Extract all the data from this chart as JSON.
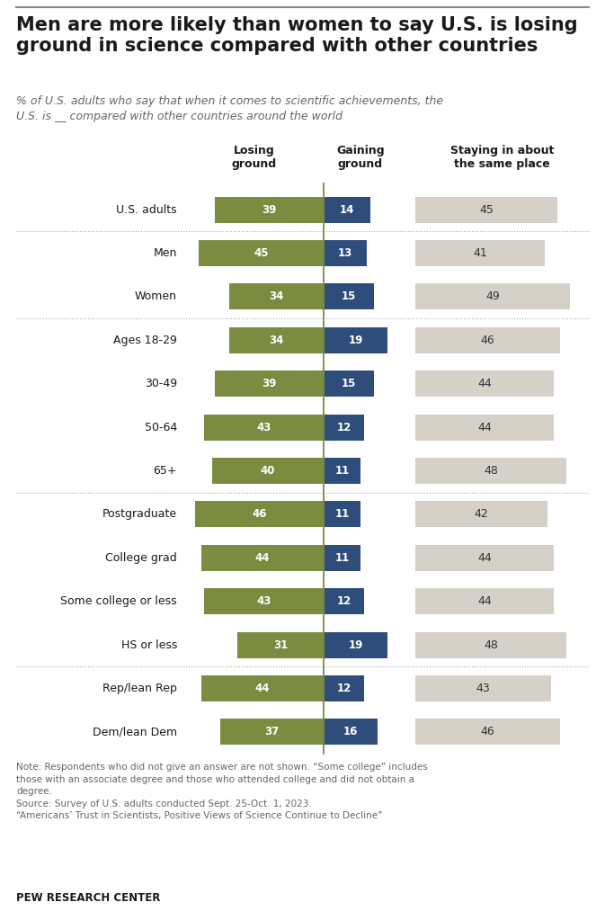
{
  "title": "Men are more likely than women to say U.S. is losing\nground in science compared with other countries",
  "subtitle": "% of U.S. adults who say that when it comes to scientific achievements, the\nU.S. is __ compared with other countries around the world",
  "col_headers": [
    "Losing\nground",
    "Gaining\nground",
    "Staying in about\nthe same place"
  ],
  "categories": [
    "U.S. adults",
    "Men",
    "Women",
    "Ages 18-29",
    "30-49",
    "50-64",
    "65+",
    "Postgraduate",
    "College grad",
    "Some college or less",
    "HS or less",
    "Rep/lean Rep",
    "Dem/lean Dem"
  ],
  "losing": [
    39,
    45,
    34,
    34,
    39,
    43,
    40,
    46,
    44,
    43,
    31,
    44,
    37
  ],
  "gaining": [
    14,
    13,
    15,
    19,
    15,
    12,
    11,
    11,
    11,
    12,
    19,
    12,
    16
  ],
  "staying": [
    45,
    41,
    49,
    46,
    44,
    44,
    48,
    42,
    44,
    44,
    48,
    43,
    46
  ],
  "color_losing": "#7b8c40",
  "color_gaining": "#2e4d7b",
  "color_staying": "#d5d0c8",
  "color_title": "#1a1a1a",
  "color_subtitle": "#666666",
  "color_note": "#666666",
  "separator_after": [
    0,
    2,
    6,
    10
  ],
  "note_text": "Note: Respondents who did not give an answer are not shown. “Some college” includes\nthose with an associate degree and those who attended college and did not obtain a\ndegree.\nSource: Survey of U.S. adults conducted Sept. 25-Oct. 1, 2023.\n“Americans’ Trust in Scientists, Positive Views of Science Continue to Decline”",
  "pew_text": "PEW RESEARCH CENTER",
  "background_color": "#ffffff",
  "max_losing": 50,
  "max_gaining": 22,
  "max_staying": 55
}
